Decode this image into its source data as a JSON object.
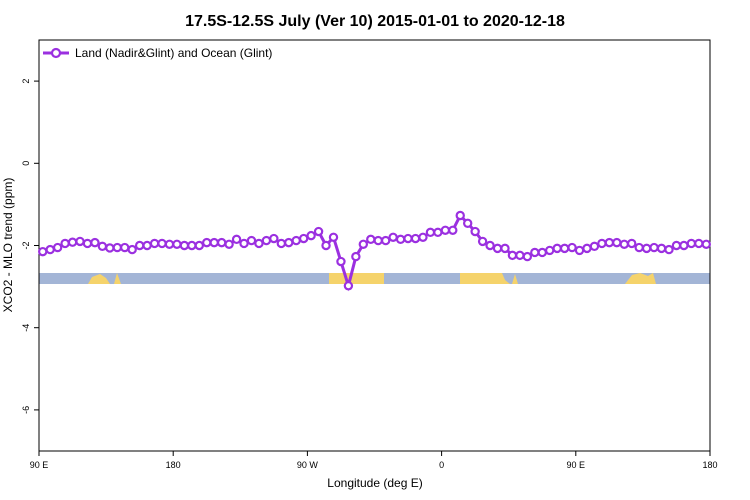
{
  "chart_data": {
    "type": "line",
    "title": "17.5S-12.5S July (Ver 10)   2015-01-01 to 2020-12-18",
    "x_label": "Longitude (deg E)",
    "y_label": "XCO2 - MLO trend (ppm)",
    "x": [
      92.5,
      97.5,
      102.5,
      107.5,
      112.5,
      117.5,
      122.5,
      127.5,
      132.5,
      137.5,
      142.5,
      147.5,
      152.5,
      157.5,
      162.5,
      167.5,
      172.5,
      177.5,
      182.5,
      187.5,
      192.5,
      197.5,
      202.5,
      207.5,
      212.5,
      217.5,
      222.5,
      227.5,
      232.5,
      237.5,
      242.5,
      247.5,
      252.5,
      257.5,
      262.5,
      267.5,
      272.5,
      277.5,
      282.5,
      287.5,
      292.5,
      297.5,
      302.5,
      307.5,
      312.5,
      317.5,
      322.5,
      327.5,
      332.5,
      337.5,
      342.5,
      347.5,
      352.5,
      357.5,
      362.5,
      367.5,
      372.5,
      377.5,
      382.5,
      387.5,
      392.5,
      397.5,
      402.5,
      407.5,
      412.5,
      417.5,
      422.5,
      427.5,
      432.5,
      437.5,
      442.5,
      447.5,
      452.5,
      457.5,
      462.5,
      467.5,
      472.5,
      477.5,
      482.5,
      487.5,
      492.5,
      497.5,
      502.5,
      507.5,
      512.5,
      517.5,
      522.5,
      527.5,
      532.5,
      537.5
    ],
    "series": [
      {
        "name": "Land (Nadir&Glint) and Ocean (Glint)",
        "color": "#9b30e0",
        "values": [
          -2.15,
          -2.1,
          -2.05,
          -1.95,
          -1.92,
          -1.9,
          -1.95,
          -1.93,
          -2.02,
          -2.06,
          -2.05,
          -2.05,
          -2.1,
          -2.0,
          -2.0,
          -1.95,
          -1.95,
          -1.97,
          -1.97,
          -2.0,
          -2.0,
          -2.0,
          -1.93,
          -1.93,
          -1.93,
          -1.97,
          -1.85,
          -1.95,
          -1.88,
          -1.95,
          -1.88,
          -1.83,
          -1.95,
          -1.93,
          -1.88,
          -1.83,
          -1.76,
          -1.66,
          -2.0,
          -1.8,
          -2.39,
          -2.98,
          -2.27,
          -1.97,
          -1.85,
          -1.88,
          -1.88,
          -1.8,
          -1.85,
          -1.83,
          -1.83,
          -1.8,
          -1.68,
          -1.68,
          -1.63,
          -1.63,
          -1.27,
          -1.46,
          -1.66,
          -1.9,
          -2.0,
          -2.07,
          -2.07,
          -2.24,
          -2.24,
          -2.27,
          -2.17,
          -2.17,
          -2.12,
          -2.07,
          -2.07,
          -2.05,
          -2.12,
          -2.07,
          -2.02,
          -1.95,
          -1.93,
          -1.93,
          -1.97,
          -1.95,
          -2.05,
          -2.07,
          -2.05,
          -2.07,
          -2.1,
          -2.0,
          -2.0,
          -1.95,
          -1.95,
          -1.97
        ]
      }
    ],
    "xlim": [
      90,
      540
    ],
    "xticks": [
      {
        "value": 90,
        "label": "90 E"
      },
      {
        "value": 180,
        "label": "180"
      },
      {
        "value": 270,
        "label": "90 W"
      },
      {
        "value": 360,
        "label": "0"
      },
      {
        "value": 450,
        "label": "90 E"
      },
      {
        "value": 540,
        "label": "180"
      }
    ],
    "ylim": [
      -7,
      3
    ],
    "yticks": [
      2,
      0,
      -2,
      -4,
      -6
    ],
    "legend": "top-left"
  }
}
